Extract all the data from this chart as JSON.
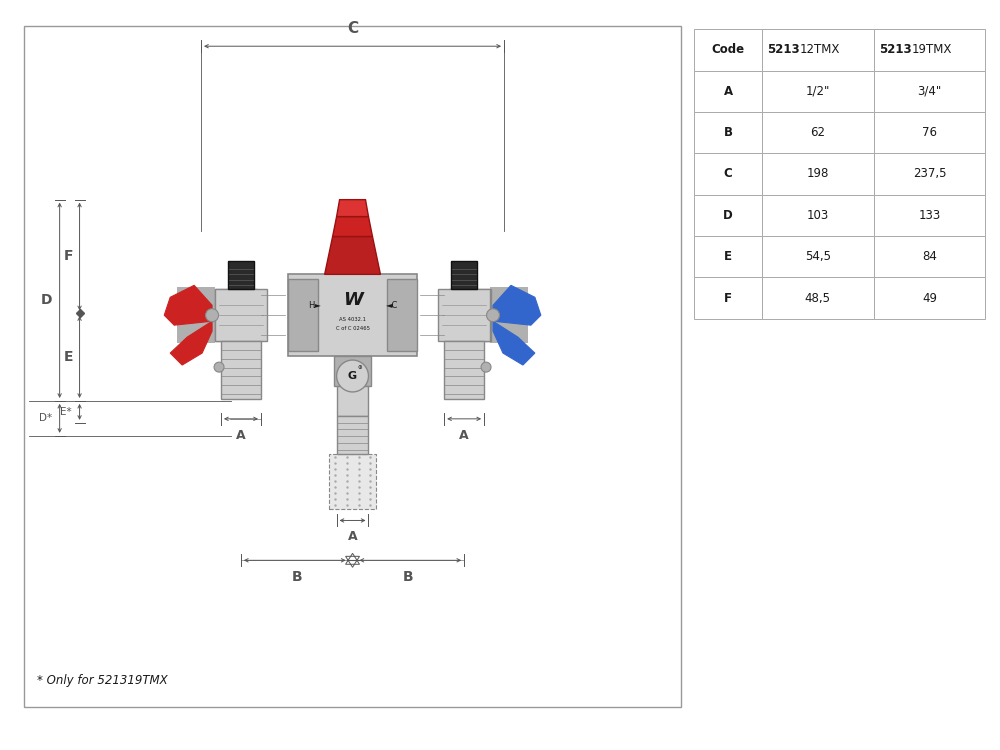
{
  "bg_color": "#ffffff",
  "table_rows": [
    [
      "Code",
      "521312TMX",
      "521319TMX"
    ],
    [
      "A",
      "1/2\"",
      "3/4\""
    ],
    [
      "B",
      "62",
      "76"
    ],
    [
      "C",
      "198",
      "237,5"
    ],
    [
      "D",
      "103",
      "133"
    ],
    [
      "E",
      "54,5",
      "84"
    ],
    [
      "F",
      "48,5",
      "49"
    ]
  ],
  "footnote": "* Only for 521319TMX",
  "red_color": "#cc2222",
  "blue_color": "#3366cc",
  "gray_light": "#d0d0d0",
  "gray_mid": "#b0b0b0",
  "gray_dark": "#888888",
  "dark_color": "#1a1a1a",
  "dim_color": "#555555"
}
